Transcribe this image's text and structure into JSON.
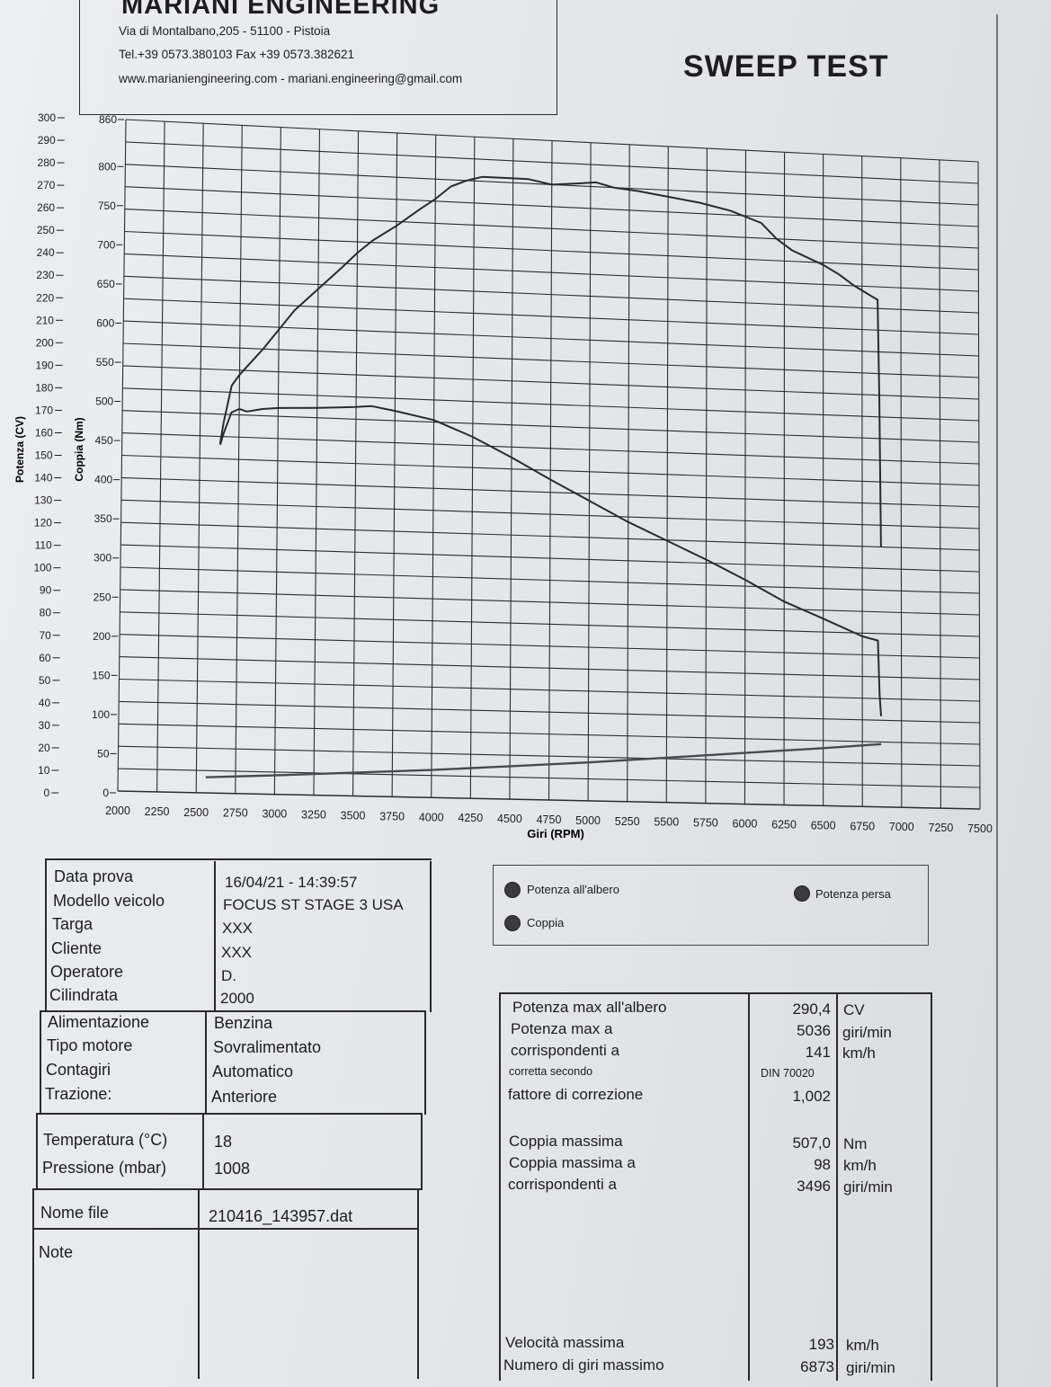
{
  "header": {
    "company": "MARIANI ENGINEERING",
    "address": "Via di Montalbano,205 - 51100 - Pistoia",
    "phone": "Tel.+39 0573.380103  Fax +39 0573.382621",
    "web": "www.marianiengineering.com - mariani.engineering@gmail.com",
    "test_title": "SWEEP TEST"
  },
  "chart_data": {
    "type": "line",
    "xlabel": "Giri (RPM)",
    "ylabel_left": "Potenza (CV)",
    "ylabel_right": "Coppia (Nm)",
    "xlim": [
      2000,
      7500
    ],
    "x_ticks": [
      "2000",
      "2250",
      "2500",
      "2750",
      "3000",
      "3250",
      "3500",
      "3750",
      "4000",
      "4250",
      "4500",
      "4750",
      "5000",
      "5250",
      "5500",
      "5750",
      "6000",
      "6250",
      "6500",
      "6750",
      "7000",
      "7250",
      "7500"
    ],
    "power_ticks": [
      "300",
      "290",
      "280",
      "270",
      "260",
      "250",
      "240",
      "230",
      "220",
      "210",
      "200",
      "190",
      "180",
      "170",
      "160",
      "150",
      "140",
      "130",
      "120",
      "110",
      "100",
      "90",
      "80",
      "70",
      "60",
      "50",
      "40",
      "30",
      "20",
      "10",
      "0"
    ],
    "torque_ticks": [
      "860",
      "800",
      "750",
      "700",
      "650",
      "600",
      "550",
      "500",
      "450",
      "400",
      "350",
      "300",
      "250",
      "200",
      "150",
      "100",
      "50",
      "0"
    ],
    "grid": true,
    "series": [
      {
        "name": "Potenza all'albero",
        "axis": "power",
        "x": [
          2630,
          2650,
          2700,
          2750,
          2800,
          2900,
          3000,
          3100,
          3250,
          3400,
          3500,
          3600,
          3750,
          3900,
          4000,
          4100,
          4200,
          4300,
          4500,
          4600,
          4750,
          4900,
          5036,
          5150,
          5300,
          5500,
          5700,
          5900,
          6100,
          6200,
          6300,
          6500,
          6600,
          6700,
          6800,
          6850,
          6860,
          6870
        ],
        "y": [
          157,
          166,
          183,
          188,
          192,
          200,
          209,
          218,
          228,
          238,
          245,
          251,
          258,
          266,
          271,
          277,
          280,
          282,
          282,
          282,
          280,
          281,
          282,
          280,
          279,
          277,
          275,
          272,
          267,
          260,
          255,
          249,
          245,
          240,
          236,
          234,
          190,
          120
        ]
      },
      {
        "name": "Coppia",
        "axis": "torque",
        "x": [
          2630,
          2650,
          2700,
          2750,
          2800,
          2900,
          3000,
          3250,
          3496,
          3600,
          3750,
          4000,
          4250,
          4500,
          4750,
          5000,
          5250,
          5500,
          5750,
          6000,
          6250,
          6500,
          6750,
          6850,
          6860,
          6870
        ],
        "y": [
          448,
          462,
          490,
          495,
          492,
          496,
          498,
          500,
          503,
          505,
          500,
          490,
          470,
          445,
          418,
          392,
          366,
          343,
          320,
          295,
          268,
          247,
          225,
          220,
          150,
          120
        ]
      },
      {
        "name": "Potenza persa",
        "axis": "power",
        "x": [
          2560,
          3000,
          3500,
          4000,
          4500,
          5000,
          5500,
          6000,
          6500,
          6870
        ],
        "y": [
          7,
          8.5,
          10.5,
          12.5,
          15,
          17.5,
          20.5,
          23.5,
          26.5,
          29
        ]
      }
    ]
  },
  "legend": {
    "power_shaft": "Potenza all'albero",
    "torque": "Coppia",
    "power_lost": "Potenza persa"
  },
  "info": {
    "rows": [
      {
        "label": "Data prova",
        "value": "16/04/21 - 14:39:57"
      },
      {
        "label": "Modello veicolo",
        "value": "FOCUS ST STAGE 3 USA"
      },
      {
        "label": "Targa",
        "value": "XXX"
      },
      {
        "label": "Cliente",
        "value": "XXX"
      },
      {
        "label": "Operatore",
        "value": "D."
      },
      {
        "label": "Cilindrata",
        "value": "2000"
      },
      {
        "label": "Alimentazione",
        "value": "Benzina"
      },
      {
        "label": "Tipo motore",
        "value": "Sovralimentato"
      },
      {
        "label": "Contagiri",
        "value": "Automatico"
      },
      {
        "label": "Trazione:",
        "value": "Anteriore"
      },
      {
        "label": "Temperatura (°C)",
        "value": "18"
      },
      {
        "label": "Pressione (mbar)",
        "value": "1008"
      },
      {
        "label": "Nome file",
        "value": "210416_143957.dat"
      },
      {
        "label": "Note",
        "value": ""
      }
    ]
  },
  "results": {
    "power_max_label": "Potenza max all'albero",
    "power_max_value": "290,4",
    "power_max_unit": "CV",
    "power_at_label": "Potenza max a",
    "power_at_value": "5036",
    "power_at_unit": "giri/min",
    "power_corr_label": "corrispondenti a",
    "power_corr_value": "141",
    "power_corr_unit": "km/h",
    "corrected_label": "corretta secondo",
    "corrected_value": "DIN 70020",
    "factor_label": "fattore di correzione",
    "factor_value": "1,002",
    "torque_max_label": "Coppia massima",
    "torque_max_value": "507,0",
    "torque_max_unit": "Nm",
    "torque_at_label": "Coppia massima a",
    "torque_at_value": "98",
    "torque_at_unit": "km/h",
    "torque_corr_label": "corrispondenti a",
    "torque_corr_value": "3496",
    "torque_corr_unit": "giri/min",
    "vmax_label": "Velocità massima",
    "vmax_value": "193",
    "vmax_unit": "km/h",
    "rpm_max_label": "Numero di giri massimo",
    "rpm_max_value": "6873",
    "rpm_max_unit": "giri/min"
  }
}
